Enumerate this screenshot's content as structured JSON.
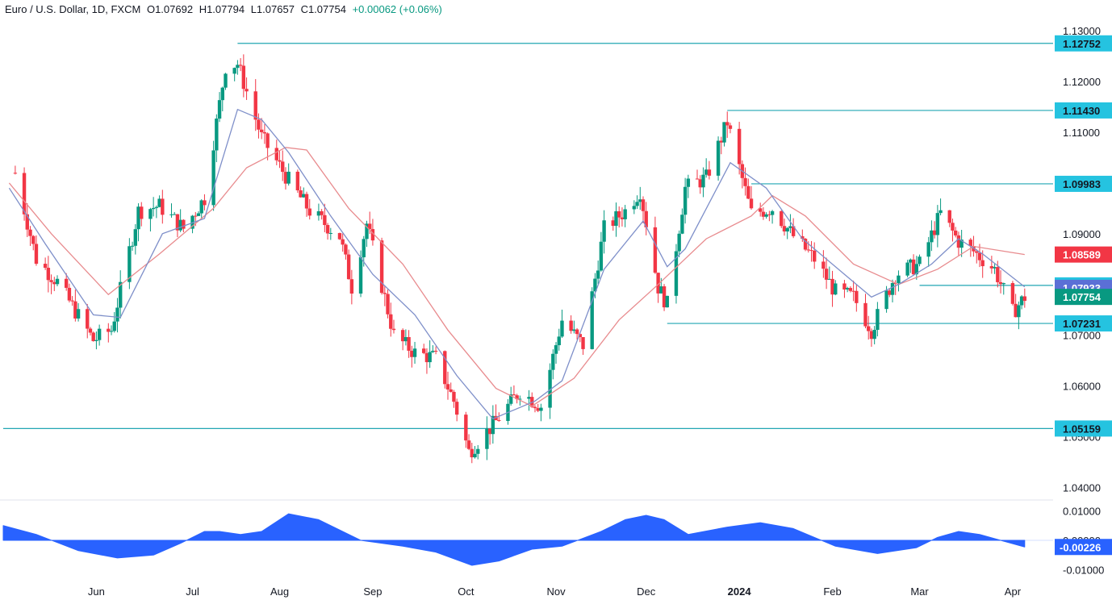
{
  "header": {
    "symbol": "Euro / U.S. Dollar, 1D, FXCM",
    "open": "O1.07692",
    "high": "H1.07794",
    "low": "L1.07657",
    "close": "C1.07754",
    "change": "+0.00062 (+0.06%)"
  },
  "colors": {
    "up": "#089981",
    "down": "#f23645",
    "ma_fast": "#7e8fc9",
    "ma_slow": "#e88b8e",
    "level_line": "#22a6b3",
    "osc_fill": "#2962ff",
    "current_price_bg": "#089981",
    "ma_slow_bg": "#f23645",
    "ma_fast_bg": "#5b6fd6",
    "level_bg": "#25c3e0"
  },
  "chart_data": {
    "type": "candlestick",
    "y_ticks": [
      "1.13000",
      "1.12000",
      "1.11000",
      "1.10000",
      "1.09000",
      "1.08000",
      "1.07000",
      "1.06000",
      "1.05000",
      "1.04000"
    ],
    "ylim": [
      1.0375,
      1.1313
    ],
    "x_ticks": [
      {
        "label": "Jun",
        "date": "2023-06-01"
      },
      {
        "label": "Jul",
        "date": "2023-07-03"
      },
      {
        "label": "Aug",
        "date": "2023-08-01"
      },
      {
        "label": "Sep",
        "date": "2023-09-01"
      },
      {
        "label": "Oct",
        "date": "2023-10-02"
      },
      {
        "label": "Nov",
        "date": "2023-11-01"
      },
      {
        "label": "Dec",
        "date": "2023-12-01"
      },
      {
        "label": "2024",
        "date": "2024-01-01"
      },
      {
        "label": "Feb",
        "date": "2024-02-01"
      },
      {
        "label": "Mar",
        "date": "2024-03-01"
      },
      {
        "label": "Apr",
        "date": "2024-04-01"
      }
    ],
    "close_path": [
      [
        "2023-05-05",
        1.102
      ],
      [
        "2023-05-12",
        1.085
      ],
      [
        "2023-05-19",
        1.0805
      ],
      [
        "2023-05-31",
        1.069
      ],
      [
        "2023-06-06",
        1.071
      ],
      [
        "2023-06-15",
        1.0945
      ],
      [
        "2023-06-22",
        1.0955
      ],
      [
        "2023-06-30",
        1.091
      ],
      [
        "2023-07-07",
        1.097
      ],
      [
        "2023-07-14",
        1.123
      ],
      [
        "2023-07-18",
        1.1235
      ],
      [
        "2023-07-26",
        1.109
      ],
      [
        "2023-08-04",
        1.1005
      ],
      [
        "2023-08-11",
        1.0945
      ],
      [
        "2023-08-21",
        1.0895
      ],
      [
        "2023-08-25",
        1.0795
      ],
      [
        "2023-08-30",
        1.092
      ],
      [
        "2023-09-08",
        1.07
      ],
      [
        "2023-09-15",
        1.0665
      ],
      [
        "2023-09-22",
        1.0655
      ],
      [
        "2023-09-28",
        1.057
      ],
      [
        "2023-10-03",
        1.047
      ],
      [
        "2023-10-12",
        1.053
      ],
      [
        "2023-10-20",
        1.059
      ],
      [
        "2023-10-27",
        1.056
      ],
      [
        "2023-11-03",
        1.073
      ],
      [
        "2023-11-10",
        1.068
      ],
      [
        "2023-11-17",
        1.091
      ],
      [
        "2023-11-24",
        1.0945
      ],
      [
        "2023-11-29",
        1.0985
      ],
      [
        "2023-12-05",
        1.0795
      ],
      [
        "2023-12-08",
        1.076
      ],
      [
        "2023-12-14",
        1.099
      ],
      [
        "2023-12-21",
        1.101
      ],
      [
        "2023-12-28",
        1.112
      ],
      [
        "2024-01-05",
        1.094
      ],
      [
        "2024-01-12",
        1.095
      ],
      [
        "2024-01-19",
        1.0895
      ],
      [
        "2024-01-26",
        1.085
      ],
      [
        "2024-02-02",
        1.0785
      ],
      [
        "2024-02-08",
        1.0775
      ],
      [
        "2024-02-14",
        1.071
      ],
      [
        "2024-02-22",
        1.082
      ],
      [
        "2024-03-01",
        1.084
      ],
      [
        "2024-03-08",
        1.094
      ],
      [
        "2024-03-14",
        1.0885
      ],
      [
        "2024-03-19",
        1.0865
      ],
      [
        "2024-03-26",
        1.083
      ],
      [
        "2024-04-01",
        1.0745
      ],
      [
        "2024-04-05",
        1.0775
      ]
    ],
    "ma_fast_path": [
      [
        "2023-05-03",
        1.099
      ],
      [
        "2023-05-15",
        1.088
      ],
      [
        "2023-05-31",
        1.074
      ],
      [
        "2023-06-09",
        1.0735
      ],
      [
        "2023-06-23",
        1.09
      ],
      [
        "2023-07-07",
        1.093
      ],
      [
        "2023-07-18",
        1.1145
      ],
      [
        "2023-07-26",
        1.1125
      ],
      [
        "2023-08-04",
        1.106
      ],
      [
        "2023-08-18",
        1.0935
      ],
      [
        "2023-09-01",
        1.082
      ],
      [
        "2023-09-15",
        1.074
      ],
      [
        "2023-09-29",
        1.062
      ],
      [
        "2023-10-11",
        1.0535
      ],
      [
        "2023-10-25",
        1.057
      ],
      [
        "2023-11-03",
        1.061
      ],
      [
        "2023-11-17",
        1.083
      ],
      [
        "2023-11-30",
        1.0925
      ],
      [
        "2023-12-08",
        1.0835
      ],
      [
        "2023-12-14",
        1.087
      ],
      [
        "2023-12-29",
        1.104
      ],
      [
        "2024-01-10",
        1.099
      ],
      [
        "2024-01-22",
        1.089
      ],
      [
        "2024-02-05",
        1.082
      ],
      [
        "2024-02-14",
        1.0775
      ],
      [
        "2024-02-23",
        1.08
      ],
      [
        "2024-03-05",
        1.084
      ],
      [
        "2024-03-14",
        1.089
      ],
      [
        "2024-03-22",
        1.086
      ],
      [
        "2024-04-05",
        1.0795
      ]
    ],
    "ma_slow_path": [
      [
        "2023-05-03",
        1.1
      ],
      [
        "2023-05-17",
        1.09
      ],
      [
        "2023-06-05",
        1.078
      ],
      [
        "2023-06-22",
        1.086
      ],
      [
        "2023-07-10",
        1.095
      ],
      [
        "2023-07-21",
        1.103
      ],
      [
        "2023-08-03",
        1.107
      ],
      [
        "2023-08-10",
        1.1065
      ],
      [
        "2023-08-24",
        1.095
      ],
      [
        "2023-09-11",
        1.084
      ],
      [
        "2023-09-26",
        1.071
      ],
      [
        "2023-10-12",
        1.0595
      ],
      [
        "2023-10-24",
        1.056
      ],
      [
        "2023-11-07",
        1.0615
      ],
      [
        "2023-11-22",
        1.073
      ],
      [
        "2023-12-05",
        1.08
      ],
      [
        "2023-12-21",
        1.089
      ],
      [
        "2024-01-05",
        1.0935
      ],
      [
        "2024-01-12",
        1.0975
      ],
      [
        "2024-01-23",
        1.0935
      ],
      [
        "2024-02-08",
        1.084
      ],
      [
        "2024-02-23",
        1.08
      ],
      [
        "2024-03-07",
        1.083
      ],
      [
        "2024-03-19",
        1.0875
      ],
      [
        "2024-04-05",
        1.0859
      ]
    ],
    "levels": [
      {
        "value": 1.12752,
        "label": "1.12752",
        "from": "2023-07-18"
      },
      {
        "value": 1.1143,
        "label": "1.11430",
        "from": "2023-12-28"
      },
      {
        "value": 1.09983,
        "label": "1.09983",
        "from": "2024-01-05"
      },
      {
        "value": 1.07981,
        "label": "1.07981",
        "from": "2024-03-01"
      },
      {
        "value": 1.07231,
        "label": "1.07231",
        "from": "2023-12-08"
      },
      {
        "value": 1.05159,
        "label": "1.05159",
        "from": "2023-05-01"
      }
    ],
    "badges": [
      {
        "value": 1.08589,
        "label": "1.08589",
        "kind": "ma_slow"
      },
      {
        "value": 1.07933,
        "label": "1.07933",
        "kind": "ma_fast"
      },
      {
        "value": 1.07754,
        "label": "1.07754",
        "kind": "current"
      }
    ],
    "oscillator": {
      "y_ticks": [
        "0.01000",
        "0.00000",
        "-0.01000"
      ],
      "ylim": [
        -0.0115,
        0.0115
      ],
      "current_label": "-0.00226",
      "current_value": -0.00226,
      "path": [
        [
          "2023-05-01",
          0.005
        ],
        [
          "2023-05-12",
          0.002
        ],
        [
          "2023-05-26",
          -0.0035
        ],
        [
          "2023-06-08",
          -0.006
        ],
        [
          "2023-06-20",
          -0.005
        ],
        [
          "2023-06-29",
          -0.001
        ],
        [
          "2023-07-07",
          0.003
        ],
        [
          "2023-07-12",
          0.003
        ],
        [
          "2023-07-19",
          0.002
        ],
        [
          "2023-07-26",
          0.003
        ],
        [
          "2023-08-04",
          0.009
        ],
        [
          "2023-08-14",
          0.007
        ],
        [
          "2023-08-28",
          0.0
        ],
        [
          "2023-09-11",
          -0.002
        ],
        [
          "2023-09-22",
          -0.004
        ],
        [
          "2023-10-04",
          -0.0085
        ],
        [
          "2023-10-13",
          -0.007
        ],
        [
          "2023-10-24",
          -0.003
        ],
        [
          "2023-11-03",
          -0.002
        ],
        [
          "2023-11-16",
          0.003
        ],
        [
          "2023-11-24",
          0.007
        ],
        [
          "2023-12-01",
          0.0085
        ],
        [
          "2023-12-07",
          0.007
        ],
        [
          "2023-12-15",
          0.002
        ],
        [
          "2023-12-28",
          0.0045
        ],
        [
          "2024-01-08",
          0.006
        ],
        [
          "2024-01-19",
          0.004
        ],
        [
          "2024-02-02",
          -0.002
        ],
        [
          "2024-02-16",
          -0.0045
        ],
        [
          "2024-02-29",
          -0.0025
        ],
        [
          "2024-03-07",
          0.001
        ],
        [
          "2024-03-14",
          0.003
        ],
        [
          "2024-03-21",
          0.002
        ],
        [
          "2024-03-28",
          0.0
        ],
        [
          "2024-04-05",
          -0.00226
        ]
      ]
    }
  }
}
